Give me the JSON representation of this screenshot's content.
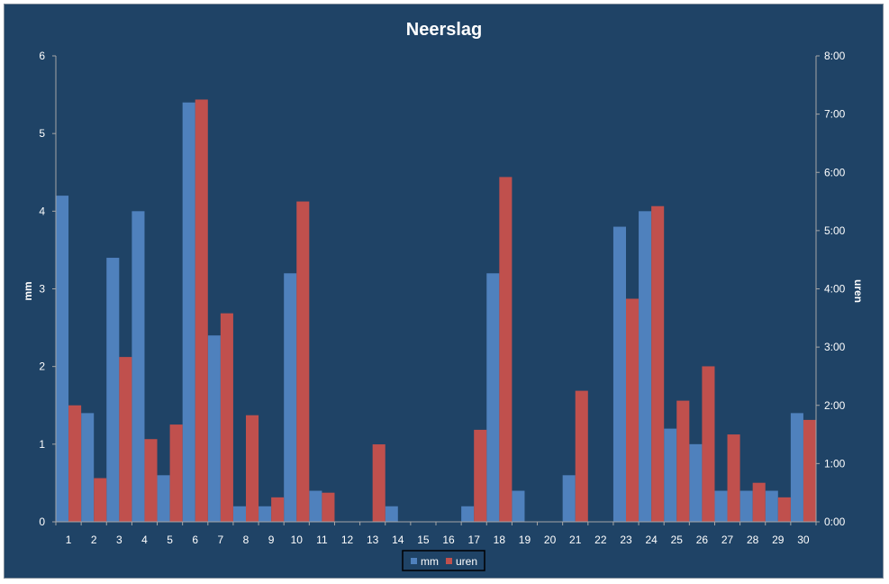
{
  "chart_data": {
    "type": "bar",
    "title": "Neerslag",
    "categories": [
      "1",
      "2",
      "3",
      "4",
      "5",
      "6",
      "7",
      "8",
      "9",
      "10",
      "11",
      "12",
      "13",
      "14",
      "15",
      "16",
      "17",
      "18",
      "19",
      "20",
      "21",
      "22",
      "23",
      "24",
      "25",
      "26",
      "27",
      "28",
      "29",
      "30"
    ],
    "series": [
      {
        "name": "mm",
        "axis": "left",
        "color": "#4f81bd",
        "values": [
          4.2,
          1.4,
          3.4,
          4.0,
          0.6,
          5.4,
          2.4,
          0.2,
          0.2,
          3.2,
          0.4,
          0,
          0,
          0.2,
          0,
          0,
          0.2,
          3.2,
          0.4,
          0,
          0.6,
          0,
          3.8,
          4.0,
          1.2,
          1.0,
          0.4,
          0.4,
          0.4,
          1.4
        ]
      },
      {
        "name": "uren",
        "axis": "right",
        "unit": "hours",
        "color": "#c0504d",
        "values": [
          2.0,
          0.75,
          2.83,
          1.42,
          1.67,
          7.25,
          3.58,
          1.83,
          0.42,
          5.5,
          0.5,
          0,
          1.33,
          0,
          0,
          0,
          1.58,
          5.92,
          0,
          0,
          2.25,
          0,
          3.83,
          5.42,
          2.08,
          2.67,
          1.5,
          0.67,
          0.42,
          1.75
        ]
      }
    ],
    "ylabel": "mm",
    "ylim": [
      0,
      6
    ],
    "yticks": [
      "0",
      "1",
      "2",
      "3",
      "4",
      "5",
      "6"
    ],
    "y2label": "uren",
    "y2lim": [
      0,
      8
    ],
    "y2ticks": [
      "0:00",
      "1:00",
      "2:00",
      "3:00",
      "4:00",
      "5:00",
      "6:00",
      "7:00",
      "8:00"
    ],
    "grid": false,
    "legend": "bottom",
    "colors": {
      "background": "#1f4366",
      "axis": "#a6a6a6",
      "text": "#ffffff"
    }
  }
}
